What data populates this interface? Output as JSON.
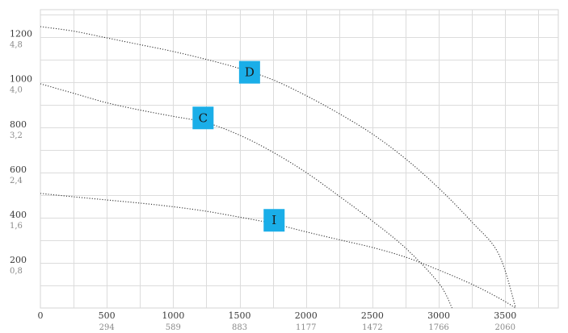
{
  "chart_data": {
    "type": "line",
    "title": "",
    "xlabel": "",
    "ylabel": "",
    "grid": true,
    "xlim": [
      0,
      3900
    ],
    "ylim": [
      0,
      1320
    ],
    "x_ticks": [
      {
        "value": 0,
        "label": "0",
        "label2": ""
      },
      {
        "value": 500,
        "label": "500",
        "label2": "294"
      },
      {
        "value": 1000,
        "label": "1000",
        "label2": "589"
      },
      {
        "value": 1500,
        "label": "1500",
        "label2": "883"
      },
      {
        "value": 2000,
        "label": "2000",
        "label2": "1177"
      },
      {
        "value": 2500,
        "label": "2500",
        "label2": "1472"
      },
      {
        "value": 3000,
        "label": "3000",
        "label2": "1766"
      },
      {
        "value": 3500,
        "label": "3500",
        "label2": "2060"
      }
    ],
    "y_ticks": [
      {
        "value": 200,
        "label": "200",
        "label2": "0,8"
      },
      {
        "value": 400,
        "label": "400",
        "label2": "1,6"
      },
      {
        "value": 600,
        "label": "600",
        "label2": "2,4"
      },
      {
        "value": 800,
        "label": "800",
        "label2": "3,2"
      },
      {
        "value": 1000,
        "label": "1000",
        "label2": "4,0"
      },
      {
        "value": 1200,
        "label": "1200",
        "label2": "4,8"
      }
    ],
    "series": [
      {
        "label": "D",
        "points": [
          [
            0,
            1245
          ],
          [
            250,
            1225
          ],
          [
            500,
            1195
          ],
          [
            750,
            1165
          ],
          [
            1000,
            1135
          ],
          [
            1250,
            1100
          ],
          [
            1500,
            1060
          ],
          [
            1750,
            1010
          ],
          [
            2000,
            940
          ],
          [
            2250,
            860
          ],
          [
            2500,
            770
          ],
          [
            2750,
            660
          ],
          [
            3000,
            530
          ],
          [
            3250,
            380
          ],
          [
            3450,
            240
          ],
          [
            3580,
            0
          ]
        ],
        "label_at": [
          1575,
          1043
        ]
      },
      {
        "label": "C",
        "points": [
          [
            0,
            992
          ],
          [
            250,
            950
          ],
          [
            500,
            908
          ],
          [
            750,
            876
          ],
          [
            1000,
            848
          ],
          [
            1250,
            820
          ],
          [
            1500,
            765
          ],
          [
            1750,
            690
          ],
          [
            2000,
            600
          ],
          [
            2250,
            495
          ],
          [
            2500,
            385
          ],
          [
            2750,
            265
          ],
          [
            3000,
            110
          ],
          [
            3100,
            0
          ]
        ],
        "label_at": [
          1225,
          841
        ]
      },
      {
        "label": "I",
        "points": [
          [
            0,
            507
          ],
          [
            250,
            492
          ],
          [
            500,
            478
          ],
          [
            750,
            464
          ],
          [
            1000,
            448
          ],
          [
            1250,
            428
          ],
          [
            1500,
            402
          ],
          [
            1750,
            374
          ],
          [
            2000,
            337
          ],
          [
            2250,
            302
          ],
          [
            2500,
            268
          ],
          [
            2750,
            225
          ],
          [
            3000,
            168
          ],
          [
            3250,
            105
          ],
          [
            3450,
            45
          ],
          [
            3580,
            0
          ]
        ],
        "label_at": [
          1760,
          388
        ]
      }
    ],
    "label_color": "#1aaee8"
  }
}
